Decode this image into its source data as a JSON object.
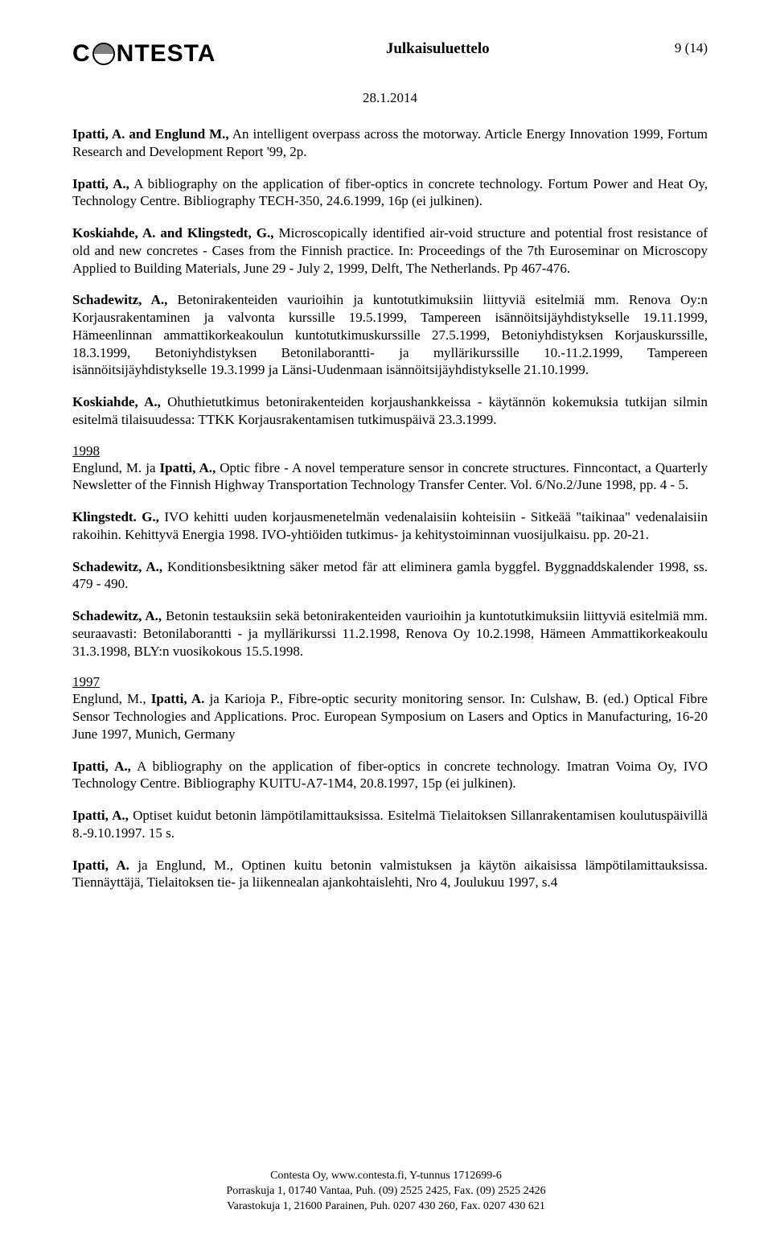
{
  "header": {
    "logo_left": "C",
    "logo_right": "NTESTA",
    "title": "Julkaisuluettelo",
    "page_indicator": "9 (14)"
  },
  "date": "28.1.2014",
  "entries_top": [
    {
      "lead": "Ipatti, A. and Englund M.,",
      "rest": " An intelligent overpass across the motorway. Article Energy Innovation 1999, Fortum Research and Development Report '99, 2p."
    },
    {
      "lead": "Ipatti, A.,",
      "rest": " A bibliography on the application of fiber-optics in concrete technology. Fortum Power and Heat Oy, Technology Centre. Bibliography TECH-350, 24.6.1999, 16p (ei julkinen)."
    },
    {
      "lead": "Koskiahde, A. and Klingstedt, G.,",
      "rest": " Microscopically identified air-void structure and potential frost resistance of old and new concretes - Cases from the Finnish practice. In: Proceedings of the 7th Euroseminar on Microscopy Applied to Building Materials, June 29 - July 2, 1999, Delft, The Netherlands. Pp 467-476."
    },
    {
      "lead": "Schadewitz, A.,",
      "rest": " Betonirakenteiden vaurioihin ja kuntotutkimuksiin liittyviä esitelmiä mm. Renova Oy:n Korjausrakentaminen ja valvonta kurssille 19.5.1999, Tampereen isännöitsijäyhdistykselle 19.11.1999, Hämeenlinnan ammattikorkeakoulun kuntotutkimuskurssille 27.5.1999, Betoniyhdistyksen Korjauskurssille, 18.3.1999, Betoniyhdistyksen Betonilaborantti- ja myllärikurssille 10.-11.2.1999, Tampereen isännöitsijäyhdistykselle 19.3.1999 ja Länsi-Uudenmaan isännöitsijäyhdistykselle 21.10.1999."
    },
    {
      "lead": "Koskiahde, A.,",
      "rest": " Ohuthietutkimus betonirakenteiden korjaushankkeissa - käytännön kokemuksia tutkijan silmin esitelmä tilaisuudessa: TTKK Korjausrakentamisen tutkimuspäivä 23.3.1999."
    }
  ],
  "year_1998": "1998",
  "entries_1998": [
    {
      "lead1": "Englund, M.",
      "mid1": " ja ",
      "lead2": "Ipatti, A.,",
      "rest": " Optic fibre - A novel temperature sensor in concrete structures. Finncontact, a  Quarterly Newsletter of the Finnish Highway Transportation Technology Transfer Center. Vol. 6/No.2/June 1998, pp. 4 - 5."
    },
    {
      "lead": "Klingstedt. G.,",
      "rest": " IVO kehitti uuden korjausmenetelmän vedenalaisiin kohteisiin - Sitkeää \"taikinaa\" vedenalaisiin rakoihin. Kehittyvä Energia 1998. IVO-yhtiöiden tutkimus- ja kehitystoiminnan vuosijulkaisu. pp. 20-21."
    },
    {
      "lead": "Schadewitz, A.,",
      "rest": " Konditionsbesiktning säker metod fär att eliminera gamla byggfel. Byggnaddskalender 1998, ss. 479 - 490."
    },
    {
      "lead": "Schadewitz, A.,",
      "rest": " Betonin testauksiin sekä betonirakenteiden vaurioihin ja kuntotutkimuksiin liittyviä esitelmiä mm. seuraavasti: Betonilaborantti - ja myllärikurssi 11.2.1998, Renova Oy 10.2.1998, Hämeen Ammattikorkeakoulu 31.3.1998, BLY:n vuosikokous 15.5.1998."
    }
  ],
  "year_1997": "1997",
  "entries_1997": [
    {
      "lead1": "Englund, M.",
      "mid1": ", ",
      "lead2": "Ipatti, A.",
      "mid2": " ja Karioja P",
      "rest": "., Fibre-optic security monitoring sensor. In: Culshaw, B. (ed.) Optical Fibre Sensor Technologies and Applications. Proc. European Symposium on Lasers and Optics in Manufacturing, 16-20 June 1997, Munich, Germany"
    },
    {
      "lead": "Ipatti, A.,",
      "rest": " A bibliography on the application of fiber-optics in concrete technology. Imatran Voima Oy, IVO Technology Centre. Bibliography KUITU-A7-1M4,  20.8.1997, 15p (ei julkinen)."
    },
    {
      "lead": "Ipatti, A.,",
      "rest": " Optiset kuidut betonin lämpötilamittauksissa. Esitelmä Tielaitoksen Sillanrakentamisen koulutuspäivillä 8.-9.10.1997. 15 s."
    },
    {
      "lead": "Ipatti, A.",
      "mid": " ja Englund, M",
      "rest": "., Optinen kuitu betonin valmistuksen ja käytön aikaisissa lämpötilamittauksissa. Tiennäyttäjä, Tielaitoksen tie- ja liikennealan ajankohtaislehti, Nro 4, Joulukuu 1997, s.4"
    }
  ],
  "footer": {
    "line1": "Contesta Oy, www.contesta.fi, Y-tunnus 1712699-6",
    "line2": "Porraskuja 1, 01740 Vantaa, Puh. (09) 2525 2425, Fax. (09) 2525 2426",
    "line3": "Varastokuja 1, 21600 Parainen, Puh. 0207 430 260, Fax. 0207 430 621"
  }
}
